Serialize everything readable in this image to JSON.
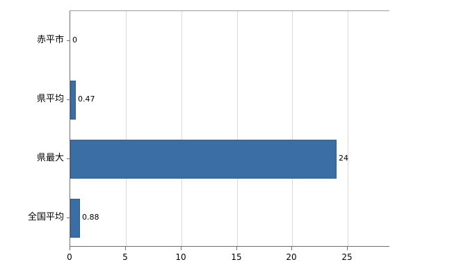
{
  "chart_data": {
    "type": "bar",
    "orientation": "horizontal",
    "title": "",
    "xlabel": "",
    "ylabel": "",
    "categories": [
      "赤平市",
      "県平均",
      "県最大",
      "全国平均"
    ],
    "values": [
      0,
      0.47,
      24,
      0.88
    ],
    "value_labels": [
      "0",
      "0.47",
      "24",
      "0.88"
    ],
    "xlim": [
      0,
      28.8
    ],
    "xticks": [
      0,
      5,
      10,
      15,
      20,
      25
    ],
    "xtick_labels": [
      "0",
      "5",
      "10",
      "15",
      "20",
      "25"
    ],
    "grid": "vertical",
    "legend": "none",
    "bar_color": "#3A6EA5",
    "bar_border_color": "#2f5c8d",
    "gridline_color": "#d9d9d9",
    "axis_color": "#6e6e6e",
    "text_color": "#000000",
    "background_color": "#ffffff"
  }
}
